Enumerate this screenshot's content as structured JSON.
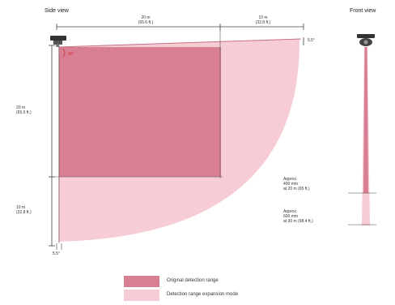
{
  "side_view": {
    "title": "Side view",
    "angle_label": "90°",
    "top_dims": [
      {
        "line1": "20 m",
        "line2": "(65.6 ft.)"
      },
      {
        "line1": "10 m",
        "line2": "(32.8 ft.)"
      }
    ],
    "right_tick_label": "5.5°",
    "left_dims": [
      {
        "line1": "20 m",
        "line2": "(65.6 ft.)"
      },
      {
        "line1": "10 m",
        "line2": "(32.8 ft.)"
      }
    ],
    "bottom_label": "5.5°"
  },
  "front_view": {
    "title": "Front view",
    "notes": [
      {
        "line1": "Approx.",
        "line2": "400 mm",
        "line3": "at 20 m (65 ft.)"
      },
      {
        "line1": "Approx.",
        "line2": "600 mm",
        "line3": "at 30 m (98.4 ft.)"
      }
    ]
  },
  "legend": [
    {
      "label": "Original detection range",
      "color": "#d97f93"
    },
    {
      "label": "Detection range expansion mode",
      "color": "#f6ccd5"
    }
  ],
  "colors": {
    "original_range": "#d97f93",
    "expansion_range": "#f6ccd5",
    "line": "#444444"
  }
}
